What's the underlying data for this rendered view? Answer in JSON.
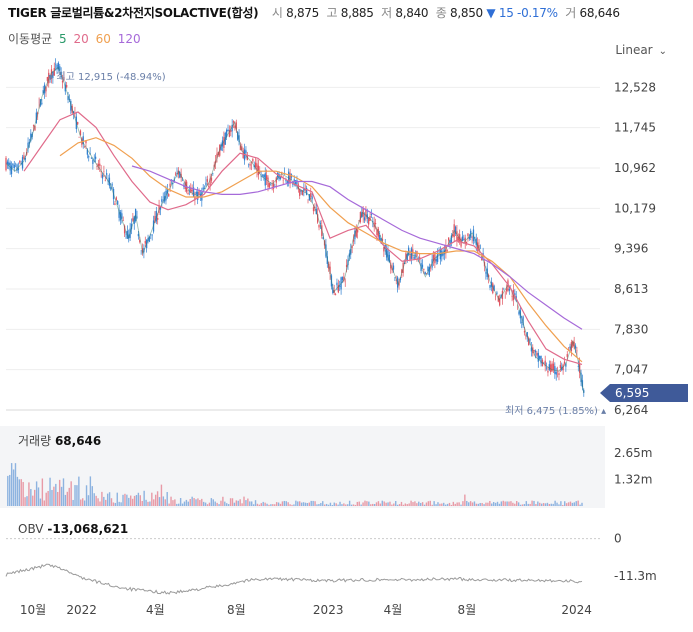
{
  "header": {
    "title": "TIGER 글로벌리튬&2차전지SOLACTIVE(합성)",
    "open_label": "시",
    "open": "8,875",
    "high_label": "고",
    "high": "8,885",
    "low_label": "저",
    "low": "8,840",
    "close_label": "종",
    "close": "8,850",
    "change_arrow": "▼",
    "change": "15",
    "change_pct": "-0.17%",
    "volume_label": "거",
    "volume": "68,646"
  },
  "ma_legend": {
    "label": "이동평균",
    "p5": "5",
    "p20": "20",
    "p60": "60",
    "p120": "120"
  },
  "scale_toggle": "Linear",
  "colors": {
    "ma5": "#e06b8b",
    "ma20": "#f0a050",
    "ma60": "#2a9a6a",
    "ma120": "#a66ad9",
    "up": "#e0525e",
    "down": "#2f7fd0",
    "price_tag": "#3f5a99"
  },
  "annotations": {
    "max_label": "최고",
    "max_value": "12,915 (-48.94%)",
    "min_label": "최저",
    "min_value": "6,475 (1.85%)"
  },
  "volume_panel": {
    "label": "거래량",
    "value": "68,646",
    "ticks": [
      "2.65m",
      "1.32m"
    ]
  },
  "obv_panel": {
    "label": "OBV",
    "value": "-13,068,621",
    "ticks": [
      "0",
      "-11.3m"
    ]
  },
  "chart_data": {
    "type": "line",
    "price_axis_ticks": [
      12528,
      11745,
      10962,
      10179,
      9396,
      8613,
      7830,
      7047,
      6264
    ],
    "price_axis_labels": [
      "12,528",
      "11,745",
      "10,962",
      "10,179",
      "9,396",
      "8,613",
      "7,830",
      "7,047",
      "6,264"
    ],
    "ylim": [
      6264,
      13020
    ],
    "current_price": "6,595",
    "x_tick_labels": [
      "10월",
      "2022",
      "4월",
      "8월",
      "2023",
      "4월",
      "8월",
      "2024"
    ],
    "x_tick_positions": [
      1.5,
      4.2,
      8.3,
      12.8,
      17.9,
      21.5,
      25.6,
      31.7
    ],
    "xlim": [
      0,
      33
    ],
    "price_series": {
      "name": "close",
      "x": [
        0,
        0.5,
        1,
        1.5,
        2,
        2.5,
        2.9,
        3.2,
        3.6,
        4.2,
        5,
        5.8,
        6.3,
        6.8,
        7.2,
        7.6,
        8.1,
        8.5,
        9,
        9.6,
        10.2,
        10.8,
        11.3,
        11.9,
        12.3,
        12.7,
        13.1,
        13.7,
        14.2,
        14.8,
        15.3,
        15.8,
        16.3,
        16.8,
        17.2,
        17.6,
        18.2,
        18.8,
        19.3,
        19.8,
        20.3,
        20.8,
        21.3,
        21.8,
        22.3,
        22.8,
        23.3,
        23.8,
        24.4,
        24.9,
        25.4,
        25.9,
        26.4,
        26.9,
        27.4,
        27.9,
        28.4,
        28.9,
        29.4,
        29.9,
        30.3,
        30.7,
        31.1,
        31.5,
        31.8,
        32.1
      ],
      "y": [
        11050,
        10900,
        11100,
        11650,
        12350,
        12800,
        12915,
        12650,
        12200,
        11500,
        11050,
        10650,
        10100,
        9600,
        10050,
        9300,
        9750,
        10150,
        10500,
        10900,
        10500,
        10400,
        10700,
        11350,
        11600,
        11850,
        11300,
        11050,
        10800,
        10650,
        10850,
        10750,
        10550,
        10450,
        10150,
        9700,
        8550,
        8800,
        9600,
        10100,
        9950,
        9650,
        9150,
        8700,
        9300,
        9250,
        8850,
        9200,
        9350,
        9750,
        9500,
        9700,
        9300,
        8750,
        8400,
        8700,
        8350,
        7750,
        7300,
        7150,
        7050,
        7020,
        7150,
        7600,
        7200,
        6595
      ]
    },
    "ma20": {
      "x": [
        1,
        2,
        3,
        4,
        5,
        6,
        7,
        8,
        9,
        10,
        11,
        12,
        13,
        14,
        15,
        16,
        17,
        18,
        19,
        20,
        21,
        22,
        23,
        24,
        25,
        26,
        27,
        28,
        29,
        30,
        31,
        32
      ],
      "y": [
        10900,
        11400,
        11900,
        12050,
        11750,
        11200,
        10700,
        10300,
        10150,
        10250,
        10450,
        10900,
        11250,
        11150,
        10850,
        10650,
        10500,
        9600,
        9750,
        9850,
        9450,
        9150,
        9200,
        9350,
        9550,
        9450,
        9100,
        8650,
        8000,
        7450,
        7250,
        7150
      ]
    },
    "ma60": {
      "x": [
        3,
        4,
        5,
        6,
        7,
        8,
        9,
        10,
        11,
        12,
        13,
        14,
        15,
        16,
        17,
        18,
        19,
        20,
        21,
        22,
        23,
        24,
        25,
        26,
        27,
        28,
        29,
        30,
        31,
        32
      ],
      "y": [
        11200,
        11450,
        11550,
        11400,
        11150,
        10800,
        10550,
        10400,
        10400,
        10500,
        10700,
        10900,
        10900,
        10800,
        10600,
        10200,
        9900,
        9700,
        9500,
        9350,
        9300,
        9300,
        9350,
        9350,
        9150,
        8850,
        8350,
        7900,
        7500,
        7200
      ]
    },
    "ma120": {
      "x": [
        7,
        8,
        9,
        10,
        11,
        12,
        13,
        14,
        15,
        16,
        17,
        18,
        19,
        20,
        21,
        22,
        23,
        24,
        25,
        26,
        27,
        28,
        29,
        30,
        31,
        32
      ],
      "y": [
        11000,
        10900,
        10750,
        10600,
        10500,
        10450,
        10450,
        10500,
        10600,
        10700,
        10700,
        10600,
        10350,
        10150,
        9950,
        9750,
        9600,
        9500,
        9400,
        9300,
        9100,
        8850,
        8550,
        8300,
        8050,
        7830
      ]
    },
    "volume_ylim": [
      0,
      2.9
    ],
    "obv": {
      "x": [
        0,
        0.8,
        1.4,
        1.9,
        2.3,
        2.7,
        3.2,
        3.8,
        4.5,
        5.2,
        6,
        7,
        8,
        9,
        10,
        11,
        12,
        13,
        14,
        15,
        16,
        17,
        18,
        19,
        20,
        21,
        22,
        23,
        24,
        25,
        26,
        27,
        28,
        29,
        30,
        31,
        32
      ],
      "y": [
        -11.0,
        -9.8,
        -9.2,
        -8.5,
        -8.0,
        -8.6,
        -9.3,
        -11.0,
        -12.3,
        -13.3,
        -14.4,
        -15.4,
        -16.0,
        -16.4,
        -16.0,
        -15.0,
        -14.3,
        -13.0,
        -12.3,
        -12.2,
        -12.4,
        -12.6,
        -12.8,
        -12.6,
        -12.5,
        -12.4,
        -12.5,
        -12.4,
        -12.3,
        -12.2,
        -12.4,
        -12.5,
        -12.6,
        -12.7,
        -12.6,
        -12.8,
        -13.07
      ]
    },
    "obv_ylim": [
      -18,
      2
    ]
  }
}
